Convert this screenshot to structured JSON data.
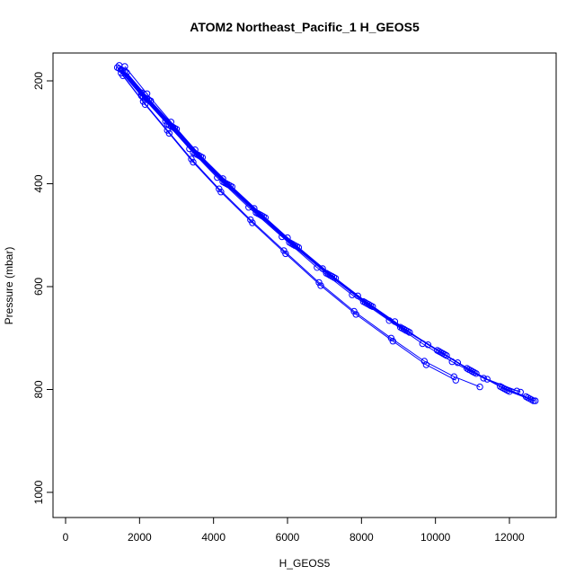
{
  "chart_data": {
    "type": "line",
    "title": "ATOM2 Northeast_Pacific_1 H_GEOS5",
    "xlabel": "H_GEOS5",
    "ylabel": "Pressure (mbar)",
    "xlim": [
      0,
      13000
    ],
    "ylim": [
      1050,
      150
    ],
    "y_reversed": true,
    "grid": false,
    "legend": "none",
    "x_ticks": [
      0,
      2000,
      4000,
      6000,
      8000,
      10000,
      12000
    ],
    "y_ticks": [
      200,
      400,
      600,
      800,
      1000
    ],
    "x_tick_labels": [
      "0",
      "2000",
      "4000",
      "6000",
      "8000",
      "10000",
      "12000"
    ],
    "y_tick_labels": [
      "200",
      "400",
      "600",
      "800",
      "1000"
    ],
    "series_color": "#0000ff",
    "marker": "open-circle",
    "series": [
      {
        "x": [
          1550,
          2200,
          2900,
          3600,
          4400,
          5300,
          6200,
          7200,
          8200,
          9200,
          10200,
          11000,
          11900,
          12600
        ],
        "y": [
          180,
          235,
          290,
          345,
          402,
          462,
          520,
          580,
          635,
          685,
          730,
          765,
          800,
          820
        ]
      },
      {
        "x": [
          1500,
          2150,
          2850,
          3550,
          4350,
          5250,
          6150,
          7150,
          8150,
          9150,
          10150,
          10950,
          11850,
          12550
        ],
        "y": [
          178,
          233,
          288,
          343,
          400,
          460,
          518,
          578,
          633,
          683,
          728,
          763,
          798,
          818
        ]
      },
      {
        "x": [
          1450,
          2100,
          2800,
          3500,
          4300,
          5200,
          6100,
          7100,
          8100,
          9100,
          10100,
          10900,
          11800,
          12500
        ],
        "y": [
          176,
          231,
          286,
          341,
          398,
          458,
          516,
          576,
          631,
          681,
          726,
          761,
          796,
          816
        ]
      },
      {
        "x": [
          1600,
          2250,
          2950,
          3650,
          4450,
          5350,
          6250,
          7250,
          8250,
          9250,
          10250,
          11050,
          11950,
          12650
        ],
        "y": [
          182,
          237,
          292,
          347,
          404,
          464,
          522,
          582,
          637,
          687,
          732,
          767,
          802,
          822
        ]
      },
      {
        "x": [
          1650,
          2300,
          3000,
          3700,
          4500,
          5400,
          6300,
          7300,
          8300,
          9300,
          10300,
          11100,
          12000,
          12700
        ],
        "y": [
          184,
          239,
          294,
          349,
          406,
          466,
          524,
          584,
          639,
          689,
          734,
          769,
          804,
          822
        ]
      },
      {
        "x": [
          1400,
          2050,
          2750,
          3450,
          4250,
          5150,
          6050,
          7050,
          8050,
          9050,
          10050,
          10850,
          11750,
          12450
        ],
        "y": [
          174,
          229,
          284,
          339,
          396,
          456,
          514,
          574,
          629,
          679,
          724,
          759,
          794,
          814
        ]
      },
      {
        "x": [
          1500,
          2100,
          2750,
          3400,
          4150,
          5000,
          5900,
          6850,
          7800,
          8800,
          9700,
          10500,
          11200
        ],
        "y": [
          185,
          240,
          296,
          352,
          410,
          470,
          530,
          592,
          648,
          700,
          745,
          775,
          795
        ]
      },
      {
        "x": [
          1550,
          2150,
          2800,
          3450,
          4200,
          5050,
          5950,
          6900,
          7850,
          8850,
          9750,
          10550
        ],
        "y": [
          190,
          246,
          302,
          358,
          416,
          476,
          536,
          598,
          654,
          706,
          752,
          782
        ]
      },
      {
        "x": [
          1600,
          2200,
          2850,
          3500,
          4250,
          5100,
          6000,
          6950,
          7900,
          8900,
          9800,
          10600,
          11400,
          12300
        ],
        "y": [
          172,
          225,
          280,
          334,
          390,
          448,
          505,
          565,
          618,
          668,
          713,
          748,
          780,
          805
        ]
      },
      {
        "x": [
          1450,
          2050,
          2700,
          3350,
          4100,
          4950,
          5850,
          6800,
          7750,
          8750,
          9650,
          10450,
          11300,
          12200
        ],
        "y": [
          170,
          223,
          278,
          332,
          388,
          446,
          503,
          563,
          616,
          666,
          711,
          746,
          778,
          803
        ]
      }
    ]
  }
}
